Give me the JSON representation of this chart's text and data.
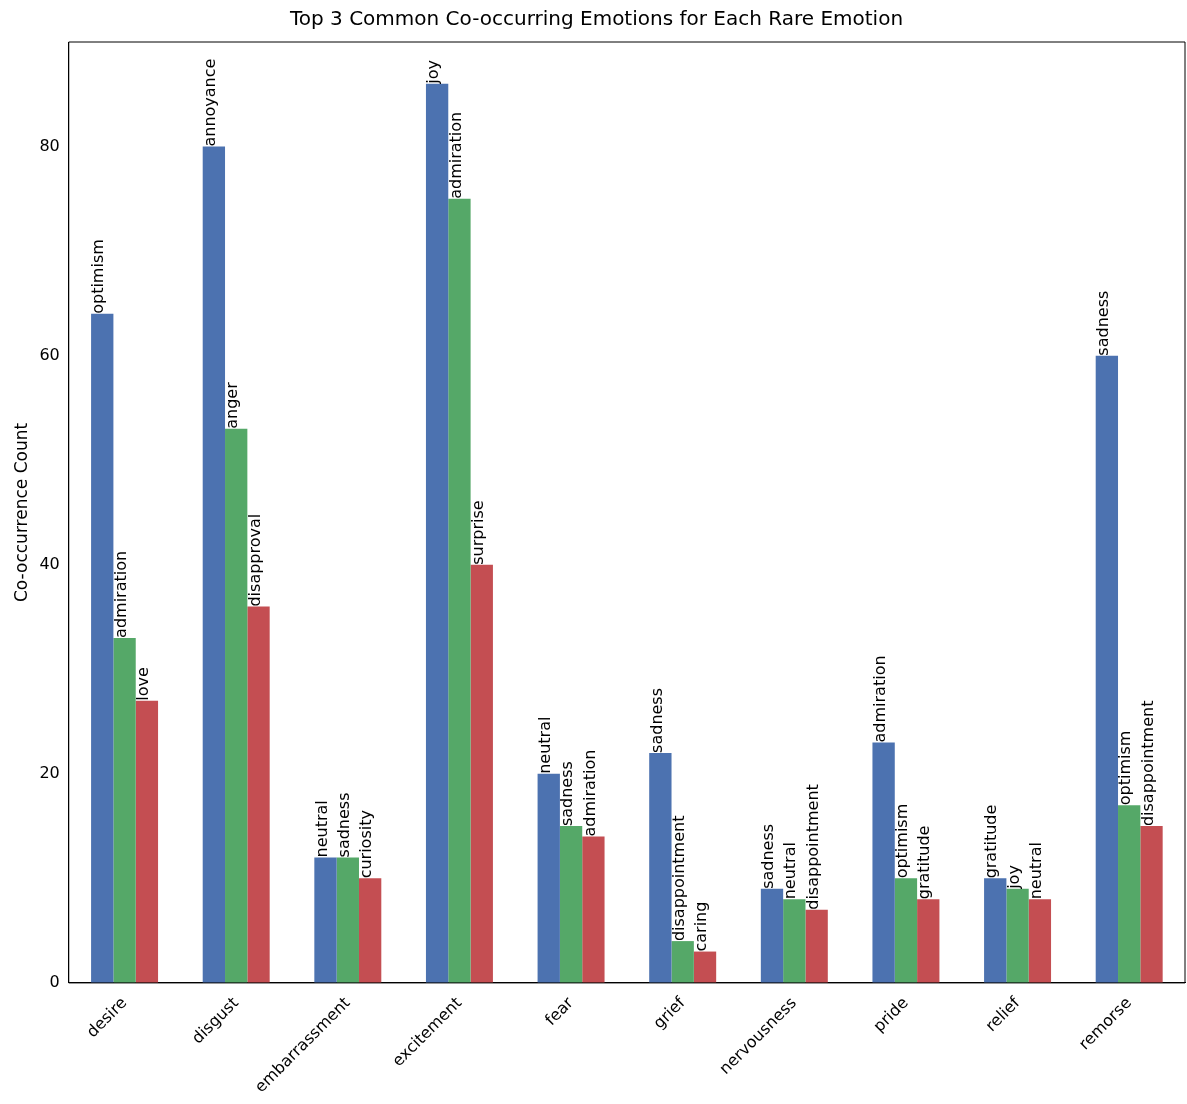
{
  "chart_data": {
    "type": "bar",
    "title": "Top 3 Common Co-occurring Emotions for Each Rare Emotion",
    "ylabel": "Co-occurrence Count",
    "categories": [
      "desire",
      "disgust",
      "embarrassment",
      "excitement",
      "fear",
      "grief",
      "nervousness",
      "pride",
      "relief",
      "remorse"
    ],
    "series": [
      {
        "color": "#4c72b0",
        "values": [
          64,
          80,
          12,
          86,
          20,
          22,
          9,
          23,
          10,
          60
        ],
        "value_labels": [
          "optimism",
          "annoyance",
          "neutral",
          "joy",
          "neutral",
          "sadness",
          "sadness",
          "admiration",
          "gratitude",
          "sadness"
        ]
      },
      {
        "color": "#55a868",
        "values": [
          33,
          53,
          12,
          75,
          15,
          4,
          8,
          10,
          9,
          17
        ],
        "value_labels": [
          "admiration",
          "anger",
          "sadness",
          "admiration",
          "sadness",
          "disappointment",
          "neutral",
          "optimism",
          "joy",
          "optimism"
        ]
      },
      {
        "color": "#c44e52",
        "values": [
          27,
          36,
          10,
          40,
          14,
          3,
          7,
          8,
          8,
          15
        ],
        "value_labels": [
          "love",
          "disapproval",
          "curiosity",
          "surprise",
          "admiration",
          "caring",
          "disappointment",
          "gratitude",
          "neutral",
          "disappointment"
        ]
      }
    ],
    "ylim": [
      0,
      90
    ],
    "yticks": [
      0,
      20,
      40,
      60,
      80
    ]
  }
}
